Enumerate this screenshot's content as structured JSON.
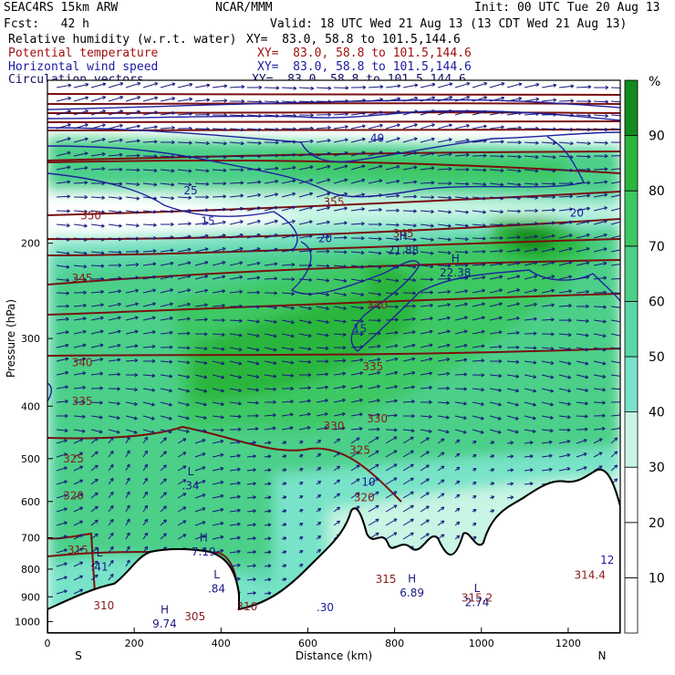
{
  "header": {
    "model": "SEAC4RS 15km ARW",
    "org": "NCAR/MMM",
    "init": "Init: 00 UTC Tue 20 Aug 13",
    "fcst": "Fcst:   42 h",
    "valid": "Valid: 18 UTC Wed 21 Aug 13 (13 CDT Wed 21 Aug 13)",
    "fields": [
      {
        "name": "Relative humidity (w.r.t. water)",
        "xy": "XY=  83.0, 58.8 to 101.5,144.6",
        "color": "#000000"
      },
      {
        "name": "Potential temperature",
        "xy": "XY=  83.0, 58.8 to 101.5,144.6",
        "color": "#a01010"
      },
      {
        "name": "Horizontal wind speed",
        "xy": "XY=  83.0, 58.8 to 101.5,144.6",
        "color": "#1a1aa0"
      },
      {
        "name": "Circulation vectors",
        "xy": "XY=  83.0, 58.8 to 101.5,144.6",
        "color": "#101060"
      }
    ]
  },
  "colorbar": {
    "unit": "%",
    "levels": [
      0,
      10,
      20,
      30,
      40,
      50,
      60,
      70,
      80,
      90,
      100
    ],
    "labels": [
      "10",
      "20",
      "30",
      "40",
      "50",
      "60",
      "70",
      "80",
      "90"
    ],
    "colors": [
      "#ffffff",
      "#ffffff",
      "#ffffff",
      "#c8f5e4",
      "#78e3c8",
      "#5ad6a9",
      "#4ccf89",
      "#3dc864",
      "#2ab63c",
      "#138a1e"
    ]
  },
  "chart_data": {
    "type": "cross-section",
    "xlabel": "Distance (km)",
    "ylabel": "Pressure (hPa)",
    "x_ticks": [
      0,
      200,
      400,
      600,
      800,
      1000,
      1200
    ],
    "y_ticks": [
      200,
      300,
      400,
      500,
      600,
      700,
      800,
      900,
      1000
    ],
    "xlim": [
      0,
      1320
    ],
    "ylim": [
      1050,
      100
    ],
    "y_scale": "log",
    "endpoint_labels": {
      "left": "S",
      "right": "N"
    },
    "theta_labels": [
      {
        "text": "350",
        "x": 100,
        "p": 178
      },
      {
        "text": "345",
        "x": 80,
        "p": 232
      },
      {
        "text": "340",
        "x": 80,
        "p": 332
      },
      {
        "text": "335",
        "x": 80,
        "p": 392
      },
      {
        "text": "325",
        "x": 60,
        "p": 500
      },
      {
        "text": "320",
        "x": 60,
        "p": 585
      },
      {
        "text": "315",
        "x": 70,
        "p": 738
      },
      {
        "text": "310",
        "x": 130,
        "p": 935
      },
      {
        "text": "355",
        "x": 660,
        "p": 168
      },
      {
        "text": "345",
        "x": 820,
        "p": 192
      },
      {
        "text": "340",
        "x": 760,
        "p": 260
      },
      {
        "text": "335",
        "x": 750,
        "p": 338
      },
      {
        "text": "330",
        "x": 660,
        "p": 435
      },
      {
        "text": "330",
        "x": 760,
        "p": 422
      },
      {
        "text": "325",
        "x": 720,
        "p": 482
      },
      {
        "text": "320",
        "x": 730,
        "p": 590
      },
      {
        "text": "315",
        "x": 780,
        "p": 835
      },
      {
        "text": "315.2",
        "x": 990,
        "p": 904
      },
      {
        "text": "314.4",
        "x": 1250,
        "p": 820
      },
      {
        "text": "310",
        "x": 460,
        "p": 938
      },
      {
        "text": "305",
        "x": 340,
        "p": 980
      }
    ],
    "wind_labels": [
      {
        "text": "40",
        "x": 760,
        "p": 128
      },
      {
        "text": "25",
        "x": 330,
        "p": 160
      },
      {
        "text": "20",
        "x": 1220,
        "p": 176
      },
      {
        "text": "15",
        "x": 370,
        "p": 182
      },
      {
        "text": "20",
        "x": 640,
        "p": 196
      },
      {
        "text": "15",
        "x": 720,
        "p": 288
      },
      {
        "text": "10",
        "x": 740,
        "p": 552
      },
      {
        "text": ".30",
        "x": 640,
        "p": 942
      },
      {
        "text": "12",
        "x": 1290,
        "p": 770
      }
    ],
    "extrema": [
      {
        "kind": "H",
        "value": "21.88",
        "x": 820,
        "p": 200
      },
      {
        "kind": "H",
        "value": "22.38",
        "x": 940,
        "p": 220
      },
      {
        "kind": "L",
        "value": ".34",
        "x": 330,
        "p": 545
      },
      {
        "kind": "H",
        "value": "7.19",
        "x": 360,
        "p": 722
      },
      {
        "kind": "L",
        "value": ".41",
        "x": 120,
        "p": 770
      },
      {
        "kind": "L",
        "value": ".84",
        "x": 390,
        "p": 845
      },
      {
        "kind": "H",
        "value": "6.89",
        "x": 840,
        "p": 860
      },
      {
        "kind": "L",
        "value": "2.74",
        "x": 990,
        "p": 895
      },
      {
        "kind": "H",
        "value": "9.74",
        "x": 270,
        "p": 980
      }
    ]
  }
}
